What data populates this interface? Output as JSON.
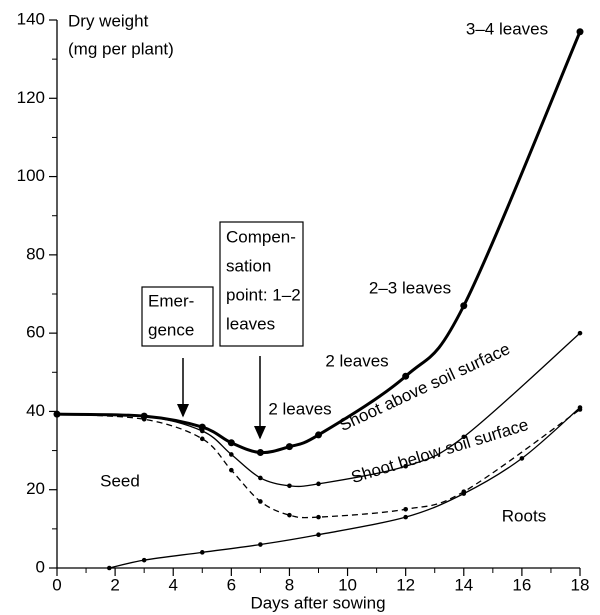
{
  "chart_data": {
    "type": "line",
    "ylabel": [
      "Dry weight",
      "(mg per plant)"
    ],
    "xlabel": "Days after sowing",
    "xlim": [
      0,
      18
    ],
    "xticks": [
      0,
      2,
      4,
      6,
      8,
      10,
      12,
      14,
      16,
      18
    ],
    "xminorticks": [
      1,
      3,
      5,
      7,
      9,
      11,
      13,
      15,
      17
    ],
    "ylim": [
      0,
      140
    ],
    "yticks": [
      0,
      20,
      40,
      60,
      80,
      100,
      120,
      140
    ],
    "yminorticks": [
      10,
      30,
      50,
      70,
      90,
      110,
      130
    ],
    "series": [
      {
        "color": "#000000",
        "style": "thick",
        "x": [
          0,
          3,
          5,
          6,
          7,
          8,
          9,
          12,
          14,
          18
        ],
        "values": [
          39.3,
          38.8,
          36,
          32,
          29.5,
          31,
          34,
          49,
          67,
          137
        ]
      },
      {
        "name": "Shoot above soil surface",
        "color": "#000000",
        "style": "solid",
        "x": [
          0,
          3,
          5,
          6,
          7,
          8,
          9,
          12,
          14,
          18
        ],
        "values": [
          39.3,
          38.8,
          35,
          29,
          23,
          21,
          21.5,
          26,
          33.5,
          60
        ]
      },
      {
        "name": "Shoot below soil surface",
        "color": "#000000",
        "style": "dashed",
        "x": [
          0,
          3,
          5,
          6,
          7,
          8,
          9,
          12,
          14,
          18
        ],
        "values": [
          39.3,
          38,
          33,
          25,
          17,
          13.5,
          13,
          15,
          19.5,
          40.5
        ]
      },
      {
        "name": "Roots",
        "color": "#000000",
        "style": "solid",
        "x": [
          1.8,
          3,
          5,
          7,
          9,
          12,
          14,
          16,
          18
        ],
        "values": [
          0,
          2,
          4,
          6,
          8.5,
          13,
          19,
          28,
          41
        ]
      }
    ],
    "annotations": [
      "3–4 leaves",
      "2–3 leaves",
      "2 leaves",
      "2 leaves",
      "Seed"
    ],
    "boxes": [
      {
        "lines": [
          "Emer-",
          "gence"
        ]
      },
      {
        "lines": [
          "Compen-",
          "sation",
          "point: 1–2",
          "leaves"
        ]
      }
    ]
  }
}
